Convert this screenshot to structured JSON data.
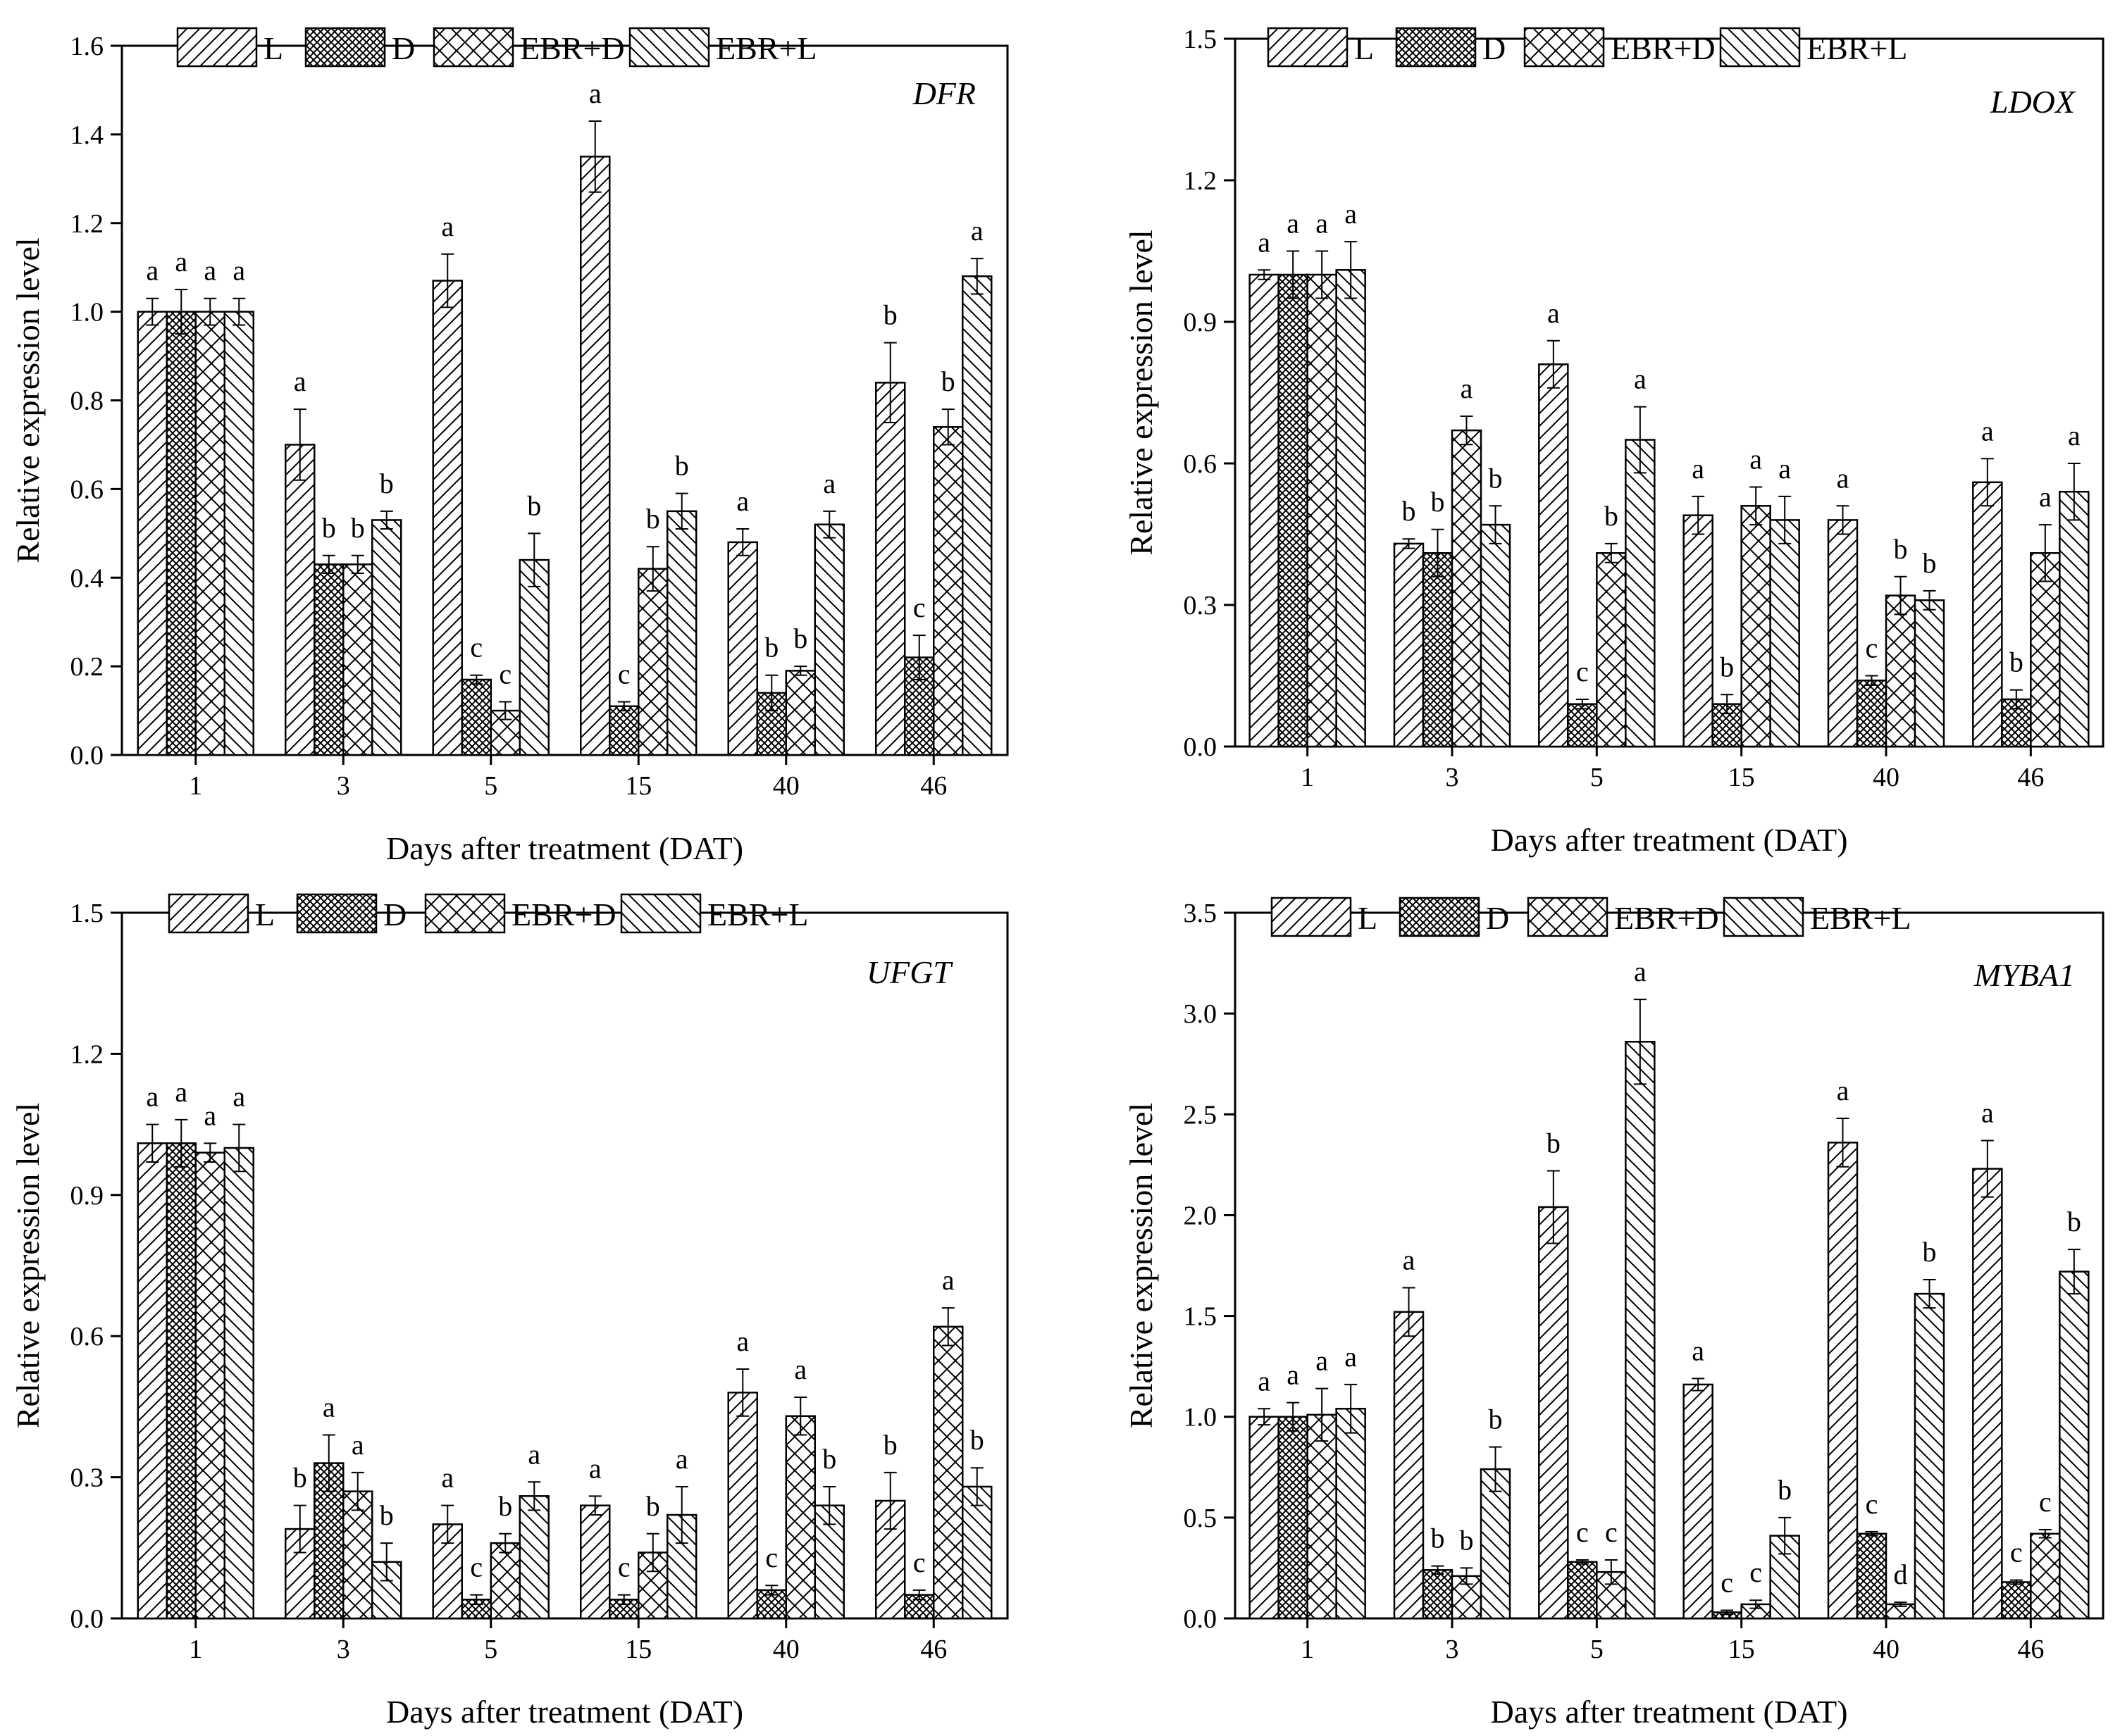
{
  "series_styles": [
    {
      "name": "L",
      "pattern": "pattern-diag-right"
    },
    {
      "name": "D",
      "pattern": "pattern-crosshatch-dense"
    },
    {
      "name": "EBR+D",
      "pattern": "pattern-crosshatch-sparse"
    },
    {
      "name": "EBR+L",
      "pattern": "pattern-diag-left"
    }
  ],
  "colors": {
    "ink": "#000000",
    "background": "#ffffff"
  },
  "chart_data": [
    {
      "type": "bar",
      "title": "DFR",
      "xlabel": "Days after treatment (DAT)",
      "ylabel": "Relative expression level",
      "categories": [
        "1",
        "3",
        "5",
        "15",
        "40",
        "46"
      ],
      "ylim": [
        0,
        1.6
      ],
      "yticks": [
        0.0,
        0.2,
        0.4,
        0.6,
        0.8,
        1.0,
        1.2,
        1.4,
        1.6
      ],
      "ytick_labels": [
        "0.0",
        "0.2",
        "0.4",
        "0.6",
        "0.8",
        "1.0",
        "1.2",
        "1.4",
        "1.6"
      ],
      "legend": [
        "L",
        "D",
        "EBR+D",
        "EBR+L"
      ],
      "series": [
        {
          "name": "L",
          "values": [
            1.0,
            0.7,
            1.07,
            1.35,
            0.48,
            0.84
          ],
          "errors": [
            0.03,
            0.08,
            0.06,
            0.08,
            0.03,
            0.09
          ],
          "letters": [
            "a",
            "a",
            "a",
            "a",
            "a",
            "b"
          ]
        },
        {
          "name": "D",
          "values": [
            1.0,
            0.43,
            0.17,
            0.11,
            0.14,
            0.22
          ],
          "errors": [
            0.05,
            0.02,
            0.01,
            0.01,
            0.04,
            0.05
          ],
          "letters": [
            "a",
            "b",
            "c",
            "c",
            "b",
            "c"
          ]
        },
        {
          "name": "EBR+D",
          "values": [
            1.0,
            0.43,
            0.1,
            0.42,
            0.19,
            0.74
          ],
          "errors": [
            0.03,
            0.02,
            0.02,
            0.05,
            0.01,
            0.04
          ],
          "letters": [
            "a",
            "b",
            "c",
            "b",
            "b",
            "b"
          ]
        },
        {
          "name": "EBR+L",
          "values": [
            1.0,
            0.53,
            0.44,
            0.55,
            0.52,
            1.08
          ],
          "errors": [
            0.03,
            0.02,
            0.06,
            0.04,
            0.03,
            0.04
          ],
          "letters": [
            "a",
            "b",
            "b",
            "b",
            "a",
            "a"
          ]
        }
      ]
    },
    {
      "type": "bar",
      "title": "LDOX",
      "xlabel": "Days after treatment (DAT)",
      "ylabel": "Relative expression level",
      "categories": [
        "1",
        "3",
        "5",
        "15",
        "40",
        "46"
      ],
      "ylim": [
        0,
        1.5
      ],
      "yticks": [
        0.0,
        0.3,
        0.6,
        0.9,
        1.2,
        1.5
      ],
      "ytick_labels": [
        "0.0",
        "0.3",
        "0.6",
        "0.9",
        "1.2",
        "1.5"
      ],
      "legend": [
        "L",
        "D",
        "EBR+D",
        "EBR+L"
      ],
      "series": [
        {
          "name": "L",
          "values": [
            1.0,
            0.43,
            0.81,
            0.49,
            0.48,
            0.56
          ],
          "errors": [
            0.01,
            0.01,
            0.05,
            0.04,
            0.03,
            0.05
          ],
          "letters": [
            "a",
            "b",
            "a",
            "a",
            "a",
            "a"
          ]
        },
        {
          "name": "D",
          "values": [
            1.0,
            0.41,
            0.09,
            0.09,
            0.14,
            0.1
          ],
          "errors": [
            0.05,
            0.05,
            0.01,
            0.02,
            0.01,
            0.02
          ],
          "letters": [
            "a",
            "b",
            "c",
            "b",
            "c",
            "b"
          ]
        },
        {
          "name": "EBR+D",
          "values": [
            1.0,
            0.67,
            0.41,
            0.51,
            0.32,
            0.41
          ],
          "errors": [
            0.05,
            0.03,
            0.02,
            0.04,
            0.04,
            0.06
          ],
          "letters": [
            "a",
            "a",
            "b",
            "a",
            "b",
            "a"
          ]
        },
        {
          "name": "EBR+L",
          "values": [
            1.01,
            0.47,
            0.65,
            0.48,
            0.31,
            0.54
          ],
          "errors": [
            0.06,
            0.04,
            0.07,
            0.05,
            0.02,
            0.06
          ],
          "letters": [
            "a",
            "b",
            "a",
            "a",
            "b",
            "a"
          ]
        }
      ]
    },
    {
      "type": "bar",
      "title": "UFGT",
      "xlabel": "Days after treatment (DAT)",
      "ylabel": "Relative expression level",
      "categories": [
        "1",
        "3",
        "5",
        "15",
        "40",
        "46"
      ],
      "ylim": [
        0,
        1.5
      ],
      "yticks": [
        0.0,
        0.3,
        0.6,
        0.9,
        1.2,
        1.5
      ],
      "ytick_labels": [
        "0.0",
        "0.3",
        "0.6",
        "0.9",
        "1.2",
        "1.5"
      ],
      "legend": [
        "L",
        "D",
        "EBR+D",
        "EBR+L"
      ],
      "series": [
        {
          "name": "L",
          "values": [
            1.01,
            0.19,
            0.2,
            0.24,
            0.48,
            0.25
          ],
          "errors": [
            0.04,
            0.05,
            0.04,
            0.02,
            0.05,
            0.06
          ],
          "letters": [
            "a",
            "b",
            "a",
            "a",
            "a",
            "b"
          ]
        },
        {
          "name": "D",
          "values": [
            1.01,
            0.33,
            0.04,
            0.04,
            0.06,
            0.05
          ],
          "errors": [
            0.05,
            0.06,
            0.01,
            0.01,
            0.01,
            0.01
          ],
          "letters": [
            "a",
            "a",
            "c",
            "c",
            "c",
            "c"
          ]
        },
        {
          "name": "EBR+D",
          "values": [
            0.99,
            0.27,
            0.16,
            0.14,
            0.43,
            0.62
          ],
          "errors": [
            0.02,
            0.04,
            0.02,
            0.04,
            0.04,
            0.04
          ],
          "letters": [
            "a",
            "a",
            "b",
            "b",
            "a",
            "a"
          ]
        },
        {
          "name": "EBR+L",
          "values": [
            1.0,
            0.12,
            0.26,
            0.22,
            0.24,
            0.28
          ],
          "errors": [
            0.05,
            0.04,
            0.03,
            0.06,
            0.04,
            0.04
          ],
          "letters": [
            "a",
            "b",
            "a",
            "a",
            "b",
            "b"
          ]
        }
      ]
    },
    {
      "type": "bar",
      "title": "MYBA1",
      "xlabel": "Days after treatment (DAT)",
      "ylabel": "Relative expression level",
      "categories": [
        "1",
        "3",
        "5",
        "15",
        "40",
        "46"
      ],
      "ylim": [
        0,
        3.5
      ],
      "yticks": [
        0.0,
        0.5,
        1.0,
        1.5,
        2.0,
        2.5,
        3.0,
        3.5
      ],
      "ytick_labels": [
        "0.0",
        "0.5",
        "1.0",
        "1.5",
        "2.0",
        "2.5",
        "3.0",
        "3.5"
      ],
      "legend": [
        "L",
        "D",
        "EBR+D",
        "EBR+L"
      ],
      "series": [
        {
          "name": "L",
          "values": [
            1.0,
            1.52,
            2.04,
            1.16,
            2.36,
            2.23
          ],
          "errors": [
            0.04,
            0.12,
            0.18,
            0.03,
            0.12,
            0.14
          ],
          "letters": [
            "a",
            "a",
            "b",
            "a",
            "a",
            "a"
          ]
        },
        {
          "name": "D",
          "values": [
            1.0,
            0.24,
            0.28,
            0.03,
            0.42,
            0.18
          ],
          "errors": [
            0.07,
            0.02,
            0.01,
            0.01,
            0.01,
            0.01
          ],
          "letters": [
            "a",
            "b",
            "c",
            "c",
            "c",
            "c"
          ]
        },
        {
          "name": "EBR+D",
          "values": [
            1.01,
            0.21,
            0.23,
            0.07,
            0.07,
            0.42
          ],
          "errors": [
            0.13,
            0.04,
            0.06,
            0.02,
            0.01,
            0.02
          ],
          "letters": [
            "a",
            "b",
            "c",
            "c",
            "d",
            "c"
          ]
        },
        {
          "name": "EBR+L",
          "values": [
            1.04,
            0.74,
            2.86,
            0.41,
            1.61,
            1.72
          ],
          "errors": [
            0.12,
            0.11,
            0.21,
            0.09,
            0.07,
            0.11
          ],
          "letters": [
            "a",
            "b",
            "a",
            "b",
            "b",
            "b"
          ]
        }
      ]
    }
  ]
}
